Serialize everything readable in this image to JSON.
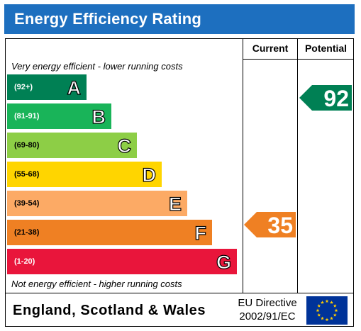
{
  "header": {
    "title": "Energy Efficiency Rating",
    "background": "#1d6fbf"
  },
  "columns": {
    "current": "Current",
    "potential": "Potential"
  },
  "captions": {
    "top": "Very energy efficient - lower running costs",
    "bottom": "Not energy efficient - higher running costs"
  },
  "bands": [
    {
      "range": "(92+)",
      "letter": "A",
      "color": "#008054"
    },
    {
      "range": "(81-91)",
      "letter": "B",
      "color": "#19b459"
    },
    {
      "range": "(69-80)",
      "letter": "C",
      "color": "#8dce46"
    },
    {
      "range": "(55-68)",
      "letter": "D",
      "color": "#ffd500"
    },
    {
      "range": "(39-54)",
      "letter": "E",
      "color": "#fcaa65"
    },
    {
      "range": "(21-38)",
      "letter": "F",
      "color": "#ef8023"
    },
    {
      "range": "(1-20)",
      "letter": "G",
      "color": "#e9153b"
    }
  ],
  "current": {
    "value": "35",
    "band": "F",
    "color": "#ef8023"
  },
  "potential": {
    "value": "92",
    "band": "A",
    "color": "#008054"
  },
  "footer": {
    "region": "England, Scotland & Wales",
    "directive_line1": "EU Directive",
    "directive_line2": "2002/91/EC",
    "flag_icon": "eu-flag-icon",
    "flag_color": "#003399",
    "star_color": "#ffcc00"
  }
}
